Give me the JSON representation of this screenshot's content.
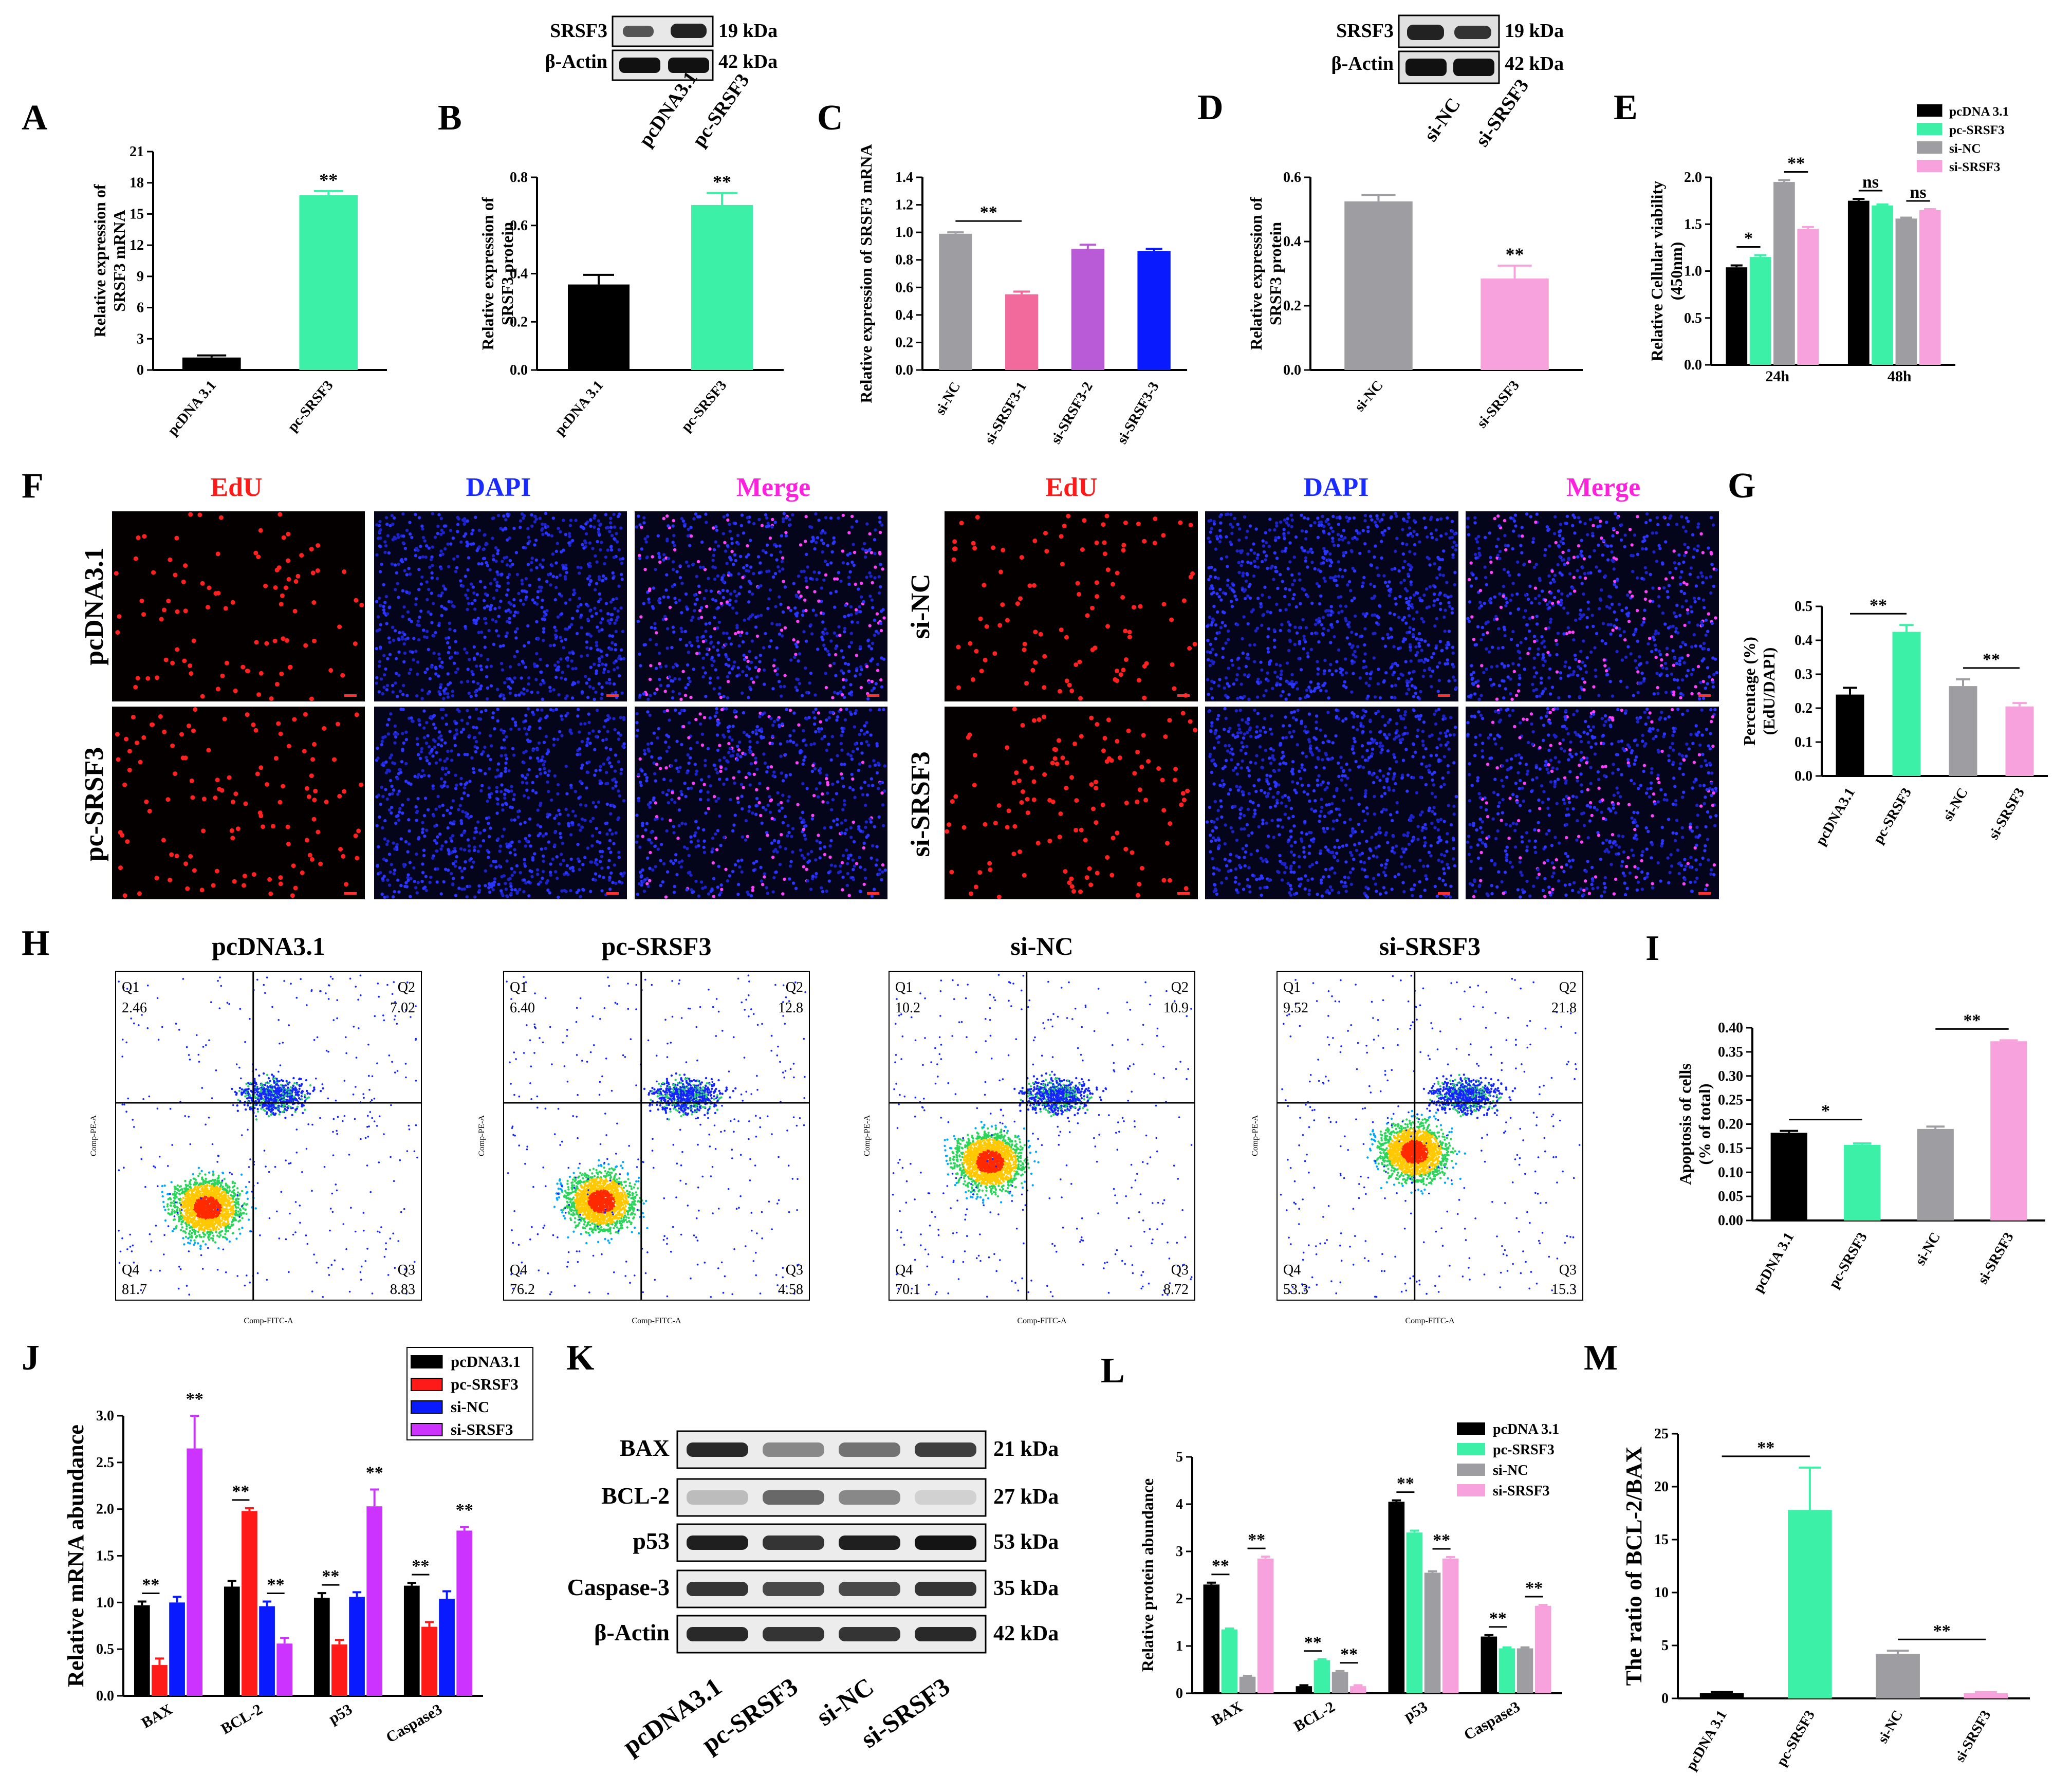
{
  "panel_letters": [
    "A",
    "B",
    "C",
    "D",
    "E",
    "F",
    "G",
    "H",
    "I",
    "J",
    "K",
    "L",
    "M"
  ],
  "colors": {
    "black": "#000000",
    "mint": "#3df0a8",
    "gray": "#9e9ea2",
    "pink": "#f7a2dc",
    "rose": "#f26a9b",
    "violet": "#b95ad6",
    "blue": "#0a1aff",
    "red": "#ff1a1a",
    "magenta": "#cc33ff",
    "lightpink": "#f59ac8"
  },
  "blots": {
    "top1": {
      "rows": [
        "SRSF3",
        "β-Actin"
      ],
      "kda": [
        "19 kDa",
        "42 kDa"
      ],
      "lanes": [
        "pcDNA3.1",
        "pc-SRSF3"
      ]
    },
    "top2": {
      "rows": [
        "SRSF3",
        "β-Actin"
      ],
      "kda": [
        "19 kDa",
        "42 kDa"
      ],
      "lanes": [
        "si-NC",
        "si-SRSF3"
      ]
    },
    "K": {
      "rows": [
        "BAX",
        "BCL-2",
        "p53",
        "Caspase-3",
        "β-Actin"
      ],
      "kda": [
        "21 kDa",
        "27 kDa",
        "53 kDa",
        "35 kDa",
        "42 kDa"
      ],
      "lanes": [
        "pcDNA3.1",
        "pc-SRSF3",
        "si-NC",
        "si-SRSF3"
      ]
    }
  },
  "micro": {
    "headers": [
      "EdU",
      "DAPI",
      "Merge"
    ],
    "left_rows": [
      "pcDNA3.1",
      "pc-SRSF3"
    ],
    "right_rows": [
      "si-NC",
      "si-SRSF3"
    ]
  },
  "flow": {
    "xlabel": "Comp-FITC-A",
    "ylabel": "Comp-PE-A",
    "quad_names": [
      "Q1",
      "Q2",
      "Q3",
      "Q4"
    ],
    "plots": [
      {
        "title": "pcDNA3.1",
        "q1": "2.46",
        "q2": "7.02",
        "q3": "8.83",
        "q4": "81.7"
      },
      {
        "title": "pc-SRSF3",
        "q1": "6.40",
        "q2": "12.8",
        "q3": "4.58",
        "q4": "76.2"
      },
      {
        "title": "si-NC",
        "q1": "10.2",
        "q2": "10.9",
        "q3": "8.72",
        "q4": "70.1"
      },
      {
        "title": "si-SRSF3",
        "q1": "9.52",
        "q2": "21.8",
        "q3": "15.3",
        "q4": "53.3"
      }
    ]
  },
  "chart_data": [
    {
      "id": "A",
      "type": "bar",
      "categories": [
        "pcDNA 3.1",
        "pc-SRSF3"
      ],
      "values": [
        1.2,
        16.8
      ],
      "errors": [
        0.2,
        0.4
      ],
      "colors": [
        "#000000",
        "#3df0a8"
      ],
      "ylabel": [
        "Relative expression of",
        "SRSF3 mRNA"
      ],
      "ylim": [
        0,
        21
      ],
      "yticks": [
        "0",
        "3",
        "6",
        "9",
        "12",
        "15",
        "18",
        "21"
      ],
      "sig": [
        {
          "label": "**",
          "bar": 1
        }
      ]
    },
    {
      "id": "B",
      "type": "bar",
      "categories": [
        "pcDNA 3.1",
        "pc-SRSF3"
      ],
      "values": [
        0.355,
        0.685
      ],
      "errors": [
        0.04,
        0.05
      ],
      "colors": [
        "#000000",
        "#3df0a8"
      ],
      "ylabel": [
        "Relative expression of",
        "SRSF3 protein"
      ],
      "ylim": [
        0,
        0.8
      ],
      "yticks": [
        "0.0",
        "0.2",
        "0.4",
        "0.6",
        "0.8"
      ],
      "sig": [
        {
          "label": "**",
          "bar": 1
        }
      ]
    },
    {
      "id": "C",
      "type": "bar",
      "categories": [
        "si-NC",
        "si-SRSF3-1",
        "si-SRSF3-2",
        "si-SRSF3-3"
      ],
      "values": [
        0.99,
        0.55,
        0.88,
        0.865
      ],
      "errors": [
        0.01,
        0.02,
        0.03,
        0.015
      ],
      "colors": [
        "#9e9ea2",
        "#f26a9b",
        "#b95ad6",
        "#0a1aff"
      ],
      "ylabel": [
        "Relative expression of SRSF3 mRNA"
      ],
      "ylim": [
        0,
        1.4
      ],
      "yticks": [
        "0.0",
        "0.2",
        "0.4",
        "0.6",
        "0.8",
        "1.0",
        "1.2",
        "1.4"
      ],
      "sig": [
        {
          "label": "**",
          "from": 0,
          "to": 1
        }
      ]
    },
    {
      "id": "D",
      "type": "bar",
      "categories": [
        "si-NC",
        "si-SRSF3"
      ],
      "values": [
        0.525,
        0.285
      ],
      "errors": [
        0.02,
        0.04
      ],
      "colors": [
        "#9e9ea2",
        "#f7a2dc"
      ],
      "ylabel": [
        "Relative expression of",
        "SRSF3 protein"
      ],
      "ylim": [
        0,
        0.6
      ],
      "yticks": [
        "0.0",
        "0.2",
        "0.4",
        "0.6"
      ],
      "sig": [
        {
          "label": "**",
          "bar": 1
        }
      ]
    },
    {
      "id": "E",
      "type": "grouped-bar",
      "categories": [
        "24h",
        "48h"
      ],
      "series": [
        {
          "name": "pcDNA 3.1",
          "values": [
            1.04,
            1.75
          ],
          "color": "#000000"
        },
        {
          "name": "pc-SRSF3",
          "values": [
            1.15,
            1.7
          ],
          "color": "#3df0a8"
        },
        {
          "name": "si-NC",
          "values": [
            1.95,
            1.56
          ],
          "color": "#9e9ea2"
        },
        {
          "name": "si-SRSF3",
          "values": [
            1.45,
            1.65
          ],
          "color": "#f7a2dc"
        }
      ],
      "errors": [
        [
          0.02,
          0.02
        ],
        [
          0.02,
          0.01
        ],
        [
          0.02,
          0.01
        ],
        [
          0.02,
          0.01
        ]
      ],
      "ylabel": [
        "Relative Cellular viability",
        "(450nm)"
      ],
      "ylim": [
        0,
        2.0
      ],
      "yticks": [
        "0.0",
        "0.5",
        "1.0",
        "1.5",
        "2.0"
      ],
      "sig": [
        {
          "label": "*",
          "g": 0,
          "from": 0,
          "to": 1
        },
        {
          "label": "**",
          "g": 0,
          "from": 2,
          "to": 3
        },
        {
          "label": "ns",
          "g": 1,
          "from": 0,
          "to": 1
        },
        {
          "label": "ns",
          "g": 1,
          "from": 2,
          "to": 3
        }
      ]
    },
    {
      "id": "G",
      "type": "bar",
      "categories": [
        "pcDNA3.1",
        "pc-SRSF3",
        "si-NC",
        "si-SRSF3"
      ],
      "values": [
        0.24,
        0.425,
        0.265,
        0.205
      ],
      "errors": [
        0.02,
        0.02,
        0.02,
        0.01
      ],
      "colors": [
        "#000000",
        "#3df0a8",
        "#9e9ea2",
        "#f7a2dc"
      ],
      "ylabel": [
        "Percentage (%)",
        "(EdU/DAPI)"
      ],
      "ylim": [
        0,
        0.5
      ],
      "yticks": [
        "0.0",
        "0.1",
        "0.2",
        "0.3",
        "0.4",
        "0.5"
      ],
      "sig": [
        {
          "label": "**",
          "from": 0,
          "to": 1
        },
        {
          "label": "**",
          "from": 2,
          "to": 3
        }
      ]
    },
    {
      "id": "I",
      "type": "bar",
      "categories": [
        "pcDNA 3.1",
        "pc-SRSF3",
        "si-NC",
        "si-SRSF3"
      ],
      "values": [
        0.182,
        0.157,
        0.19,
        0.372
      ],
      "errors": [
        0.004,
        0.003,
        0.005,
        0.002
      ],
      "colors": [
        "#000000",
        "#3df0a8",
        "#9e9ea2",
        "#f7a2dc"
      ],
      "ylabel": [
        "Apoptosis of cells",
        "(% of total)"
      ],
      "ylim": [
        0,
        0.4
      ],
      "yticks": [
        "0.00",
        "0.05",
        "0.10",
        "0.15",
        "0.20",
        "0.25",
        "0.30",
        "0.35",
        "0.40"
      ],
      "sig": [
        {
          "label": "*",
          "from": 0,
          "to": 1
        },
        {
          "label": "**",
          "from": 2,
          "to": 3
        }
      ]
    },
    {
      "id": "J",
      "type": "grouped-bar",
      "categories": [
        "BAX",
        "BCL-2",
        "p53",
        "Caspase3"
      ],
      "series": [
        {
          "name": "pcDNA3.1",
          "values": [
            0.97,
            1.17,
            1.05,
            1.18
          ],
          "color": "#000000"
        },
        {
          "name": "pc-SRSF3",
          "values": [
            0.33,
            1.98,
            0.55,
            0.74
          ],
          "color": "#ff1a1a"
        },
        {
          "name": "si-NC",
          "values": [
            1.0,
            0.96,
            1.06,
            1.04
          ],
          "color": "#0a1aff"
        },
        {
          "name": "si-SRSF3",
          "values": [
            2.65,
            0.56,
            2.03,
            1.77
          ],
          "color": "#cc33ff"
        }
      ],
      "errors": [
        [
          0.04,
          0.06,
          0.05,
          0.03
        ],
        [
          0.07,
          0.03,
          0.05,
          0.05
        ],
        [
          0.06,
          0.05,
          0.05,
          0.08
        ],
        [
          0.35,
          0.06,
          0.18,
          0.04
        ]
      ],
      "ylabel": [
        "Relative mRNA abundance"
      ],
      "ylim": [
        0,
        3.0
      ],
      "yticks": [
        "0.0",
        "0.5",
        "1.0",
        "1.5",
        "2.0",
        "2.5",
        "3.0"
      ],
      "sig": [
        {
          "label": "**",
          "g": 0,
          "from": 0,
          "to": 1
        },
        {
          "label": "**",
          "g": 0,
          "from": 3,
          "to": 3
        },
        {
          "label": "**",
          "g": 1,
          "from": 0,
          "to": 1
        },
        {
          "label": "**",
          "g": 1,
          "from": 2,
          "to": 3
        },
        {
          "label": "**",
          "g": 2,
          "from": 0,
          "to": 1
        },
        {
          "label": "**",
          "g": 2,
          "from": 3,
          "to": 3
        },
        {
          "label": "**",
          "g": 3,
          "from": 0,
          "to": 1
        },
        {
          "label": "**",
          "g": 3,
          "from": 3,
          "to": 3
        }
      ]
    },
    {
      "id": "L",
      "type": "grouped-bar",
      "categories": [
        "BAX",
        "BCL-2",
        "p53",
        "Caspase3"
      ],
      "series": [
        {
          "name": "pcDNA 3.1",
          "values": [
            2.3,
            0.15,
            4.05,
            1.2
          ],
          "color": "#000000"
        },
        {
          "name": "pc-SRSF3",
          "values": [
            1.35,
            0.7,
            3.4,
            0.95
          ],
          "color": "#3df0a8"
        },
        {
          "name": "si-NC",
          "values": [
            0.35,
            0.45,
            2.55,
            0.95
          ],
          "color": "#9e9ea2"
        },
        {
          "name": "si-SRSF3",
          "values": [
            2.85,
            0.15,
            2.85,
            1.85
          ],
          "color": "#f7a2dc"
        }
      ],
      "errors": [
        [
          0.04,
          0.02,
          0.03,
          0.03
        ],
        [
          0.02,
          0.02,
          0.04,
          0.02
        ],
        [
          0.02,
          0.02,
          0.03,
          0.02
        ],
        [
          0.04,
          0.02,
          0.03,
          0.02
        ]
      ],
      "ylabel": [
        "Relative protein abundance"
      ],
      "ylim": [
        0,
        5
      ],
      "yticks": [
        "0",
        "1",
        "2",
        "3",
        "4",
        "5"
      ],
      "sig": [
        {
          "label": "**",
          "g": 0,
          "from": 0,
          "to": 1
        },
        {
          "label": "**",
          "g": 0,
          "from": 2,
          "to": 3
        },
        {
          "label": "**",
          "g": 1,
          "from": 0,
          "to": 1
        },
        {
          "label": "**",
          "g": 1,
          "from": 2,
          "to": 3
        },
        {
          "label": "**",
          "g": 2,
          "from": 0,
          "to": 1
        },
        {
          "label": "**",
          "g": 2,
          "from": 2,
          "to": 3
        },
        {
          "label": "**",
          "g": 3,
          "from": 0,
          "to": 1
        },
        {
          "label": "**",
          "g": 3,
          "from": 2,
          "to": 3
        }
      ]
    },
    {
      "id": "M",
      "type": "bar",
      "categories": [
        "pcDNA 3.1",
        "pc-SRSF3",
        "si-NC",
        "si-SRSF3"
      ],
      "values": [
        0.5,
        17.8,
        4.2,
        0.5
      ],
      "errors": [
        0.1,
        4.0,
        0.3,
        0.1
      ],
      "colors": [
        "#000000",
        "#3df0a8",
        "#9e9ea2",
        "#f7a2dc"
      ],
      "ylabel": [
        "The ratio of BCL-2/BAX"
      ],
      "ylim": [
        0,
        25
      ],
      "yticks": [
        "0",
        "5",
        "10",
        "15",
        "20",
        "25"
      ],
      "sig": [
        {
          "label": "**",
          "from": 0,
          "to": 1
        },
        {
          "label": "**",
          "from": 2,
          "to": 3
        }
      ]
    }
  ]
}
